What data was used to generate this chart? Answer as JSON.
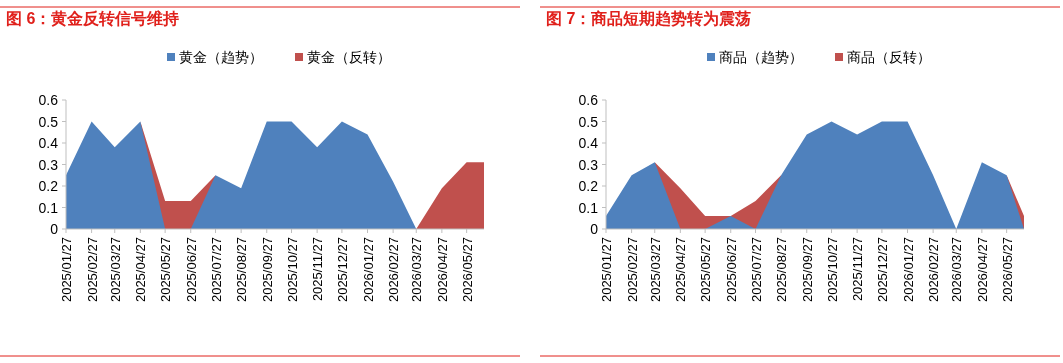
{
  "chart_data": [
    {
      "type": "area",
      "title": "图 6：黄金反转信号维持",
      "legend": "top",
      "grid": false,
      "x": [
        "2025-01-27",
        "2025-02-27",
        "2025-03-27",
        "2025-04-27",
        "2025-05-27",
        "2025-06-27",
        "2025-07-27",
        "2025-08-27",
        "2025-09-27",
        "2025-10-27",
        "2025-11-27",
        "2025-12-27",
        "2026-01-27",
        "2026-02-27",
        "2026-03-27",
        "2026-04-27",
        "2026-05-27",
        "2026-06-17"
      ],
      "series": [
        {
          "name": "黄金（趋势）",
          "color": "#4f81bd",
          "values": [
            0.25,
            0.5,
            0.38,
            0.5,
            0,
            0,
            0.25,
            0.19,
            0.5,
            0.5,
            0.38,
            0.5,
            0.44,
            0.22,
            0,
            0,
            0,
            0
          ]
        },
        {
          "name": "黄金（反转）",
          "color": "#c0504d",
          "values": [
            null,
            null,
            null,
            0.5,
            0.13,
            0.13,
            0.25,
            null,
            null,
            null,
            null,
            null,
            null,
            null,
            0,
            0.19,
            0.31,
            0.31
          ]
        }
      ],
      "xlim": [
        "2025-01-27",
        "2026-06-17"
      ],
      "xticks": [
        {
          "value": "2025-01-27",
          "label": "2025/01/27"
        },
        {
          "value": "2025-02-27",
          "label": "2025/02/27"
        },
        {
          "value": "2025-03-27",
          "label": "2025/03/27"
        },
        {
          "value": "2025-04-27",
          "label": "2025/04/27"
        },
        {
          "value": "2025-05-27",
          "label": "2025/05/27"
        },
        {
          "value": "2025-06-27",
          "label": "2025/06/27"
        },
        {
          "value": "2025-07-27",
          "label": "2025/07/27"
        },
        {
          "value": "2025-08-27",
          "label": "2025/08/27"
        },
        {
          "value": "2025-09-27",
          "label": "2025/09/27"
        },
        {
          "value": "2025-10-27",
          "label": "2025/10/27"
        },
        {
          "value": "2025-11-27",
          "label": "2025/11/27"
        },
        {
          "value": "2025-12-27",
          "label": "2025/12/27"
        },
        {
          "value": "2026-01-27",
          "label": "2026/01/27"
        },
        {
          "value": "2026-02-27",
          "label": "2026/02/27"
        },
        {
          "value": "2026-03-27",
          "label": "2026/03/27"
        },
        {
          "value": "2026-04-27",
          "label": "2026/04/27"
        },
        {
          "value": "2026-05-27",
          "label": "2026/05/27"
        }
      ],
      "ylim": [
        0,
        0.6
      ],
      "yticks": [
        0,
        0.1,
        0.2,
        0.3,
        0.4,
        0.5,
        0.6
      ]
    },
    {
      "type": "area",
      "title": "图 7：商品短期趋势转为震荡",
      "legend": "top",
      "grid": false,
      "x": [
        "2025-01-27",
        "2025-02-27",
        "2025-03-27",
        "2025-04-27",
        "2025-05-27",
        "2025-06-27",
        "2025-07-27",
        "2025-08-27",
        "2025-09-27",
        "2025-10-27",
        "2025-11-27",
        "2025-12-27",
        "2026-01-27",
        "2026-02-27",
        "2026-03-27",
        "2026-04-27",
        "2026-05-27",
        "2026-06-17"
      ],
      "series": [
        {
          "name": "商品（趋势）",
          "color": "#4f81bd",
          "values": [
            0.06,
            0.25,
            0.31,
            0,
            0,
            0.06,
            0,
            0.25,
            0.44,
            0.5,
            0.44,
            0.5,
            0.5,
            0.25,
            0,
            0.31,
            0.25,
            0
          ]
        },
        {
          "name": "商品（反转）",
          "color": "#c0504d",
          "values": [
            null,
            null,
            0.31,
            0.19,
            0.06,
            0.06,
            0.13,
            0.25,
            null,
            null,
            null,
            null,
            null,
            null,
            null,
            null,
            0.25,
            0.06
          ]
        }
      ],
      "xlim": [
        "2025-01-27",
        "2026-06-17"
      ],
      "xticks": [
        {
          "value": "2025-01-27",
          "label": "2025/01/27"
        },
        {
          "value": "2025-02-27",
          "label": "2025/02/27"
        },
        {
          "value": "2025-03-27",
          "label": "2025/03/27"
        },
        {
          "value": "2025-04-27",
          "label": "2025/04/27"
        },
        {
          "value": "2025-05-27",
          "label": "2025/05/27"
        },
        {
          "value": "2025-06-27",
          "label": "2025/06/27"
        },
        {
          "value": "2025-07-27",
          "label": "2025/07/27"
        },
        {
          "value": "2025-08-27",
          "label": "2025/08/27"
        },
        {
          "value": "2025-09-27",
          "label": "2025/09/27"
        },
        {
          "value": "2025-10-27",
          "label": "2025/10/27"
        },
        {
          "value": "2025-11-27",
          "label": "2025/11/27"
        },
        {
          "value": "2025-12-27",
          "label": "2025/12/27"
        },
        {
          "value": "2026-01-27",
          "label": "2026/01/27"
        },
        {
          "value": "2026-02-27",
          "label": "2026/02/27"
        },
        {
          "value": "2026-03-27",
          "label": "2026/03/27"
        },
        {
          "value": "2026-04-27",
          "label": "2026/04/27"
        },
        {
          "value": "2026-05-27",
          "label": "2026/05/27"
        }
      ],
      "ylim": [
        0,
        0.6
      ],
      "yticks": [
        0,
        0.1,
        0.2,
        0.3,
        0.4,
        0.5,
        0.6
      ]
    }
  ]
}
